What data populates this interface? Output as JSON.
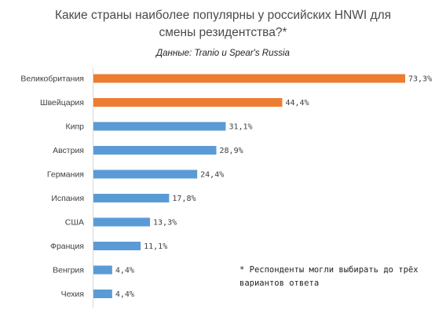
{
  "header": {
    "title_line1": "Какие страны наиболее популярны у российских HNWI для",
    "title_line2": "смены резидентства?*",
    "source": "Данные: Tranio и Spear's Russia"
  },
  "footnote": {
    "line1": "* Респонденты могли выбирать до трёх",
    "line2": "вариантов ответа"
  },
  "chart_data": {
    "type": "bar",
    "orientation": "horizontal",
    "title": "Какие страны наиболее популярны у российских HNWI для смены резидентства?*",
    "subtitle": "Данные: Tranio и Spear's Russia",
    "categories": [
      "Великобритания",
      "Швейцария",
      "Кипр",
      "Австрия",
      "Германия",
      "Испания",
      "США",
      "Франция",
      "Венгрия",
      "Чехия"
    ],
    "values": [
      73.3,
      44.4,
      31.1,
      28.9,
      24.4,
      17.8,
      13.3,
      11.1,
      4.4,
      4.4
    ],
    "value_labels": [
      "73,3%",
      "44,4%",
      "31,1%",
      "28,9%",
      "24,4%",
      "17,8%",
      "13,3%",
      "11,1%",
      "4,4%",
      "4,4%"
    ],
    "bar_colors": [
      "#ED7D31",
      "#ED7D31",
      "#5B9BD5",
      "#5B9BD5",
      "#5B9BD5",
      "#5B9BD5",
      "#5B9BD5",
      "#5B9BD5",
      "#5B9BD5",
      "#5B9BD5"
    ],
    "xlim": [
      0,
      73.3
    ],
    "grid": false,
    "legend": "none"
  }
}
